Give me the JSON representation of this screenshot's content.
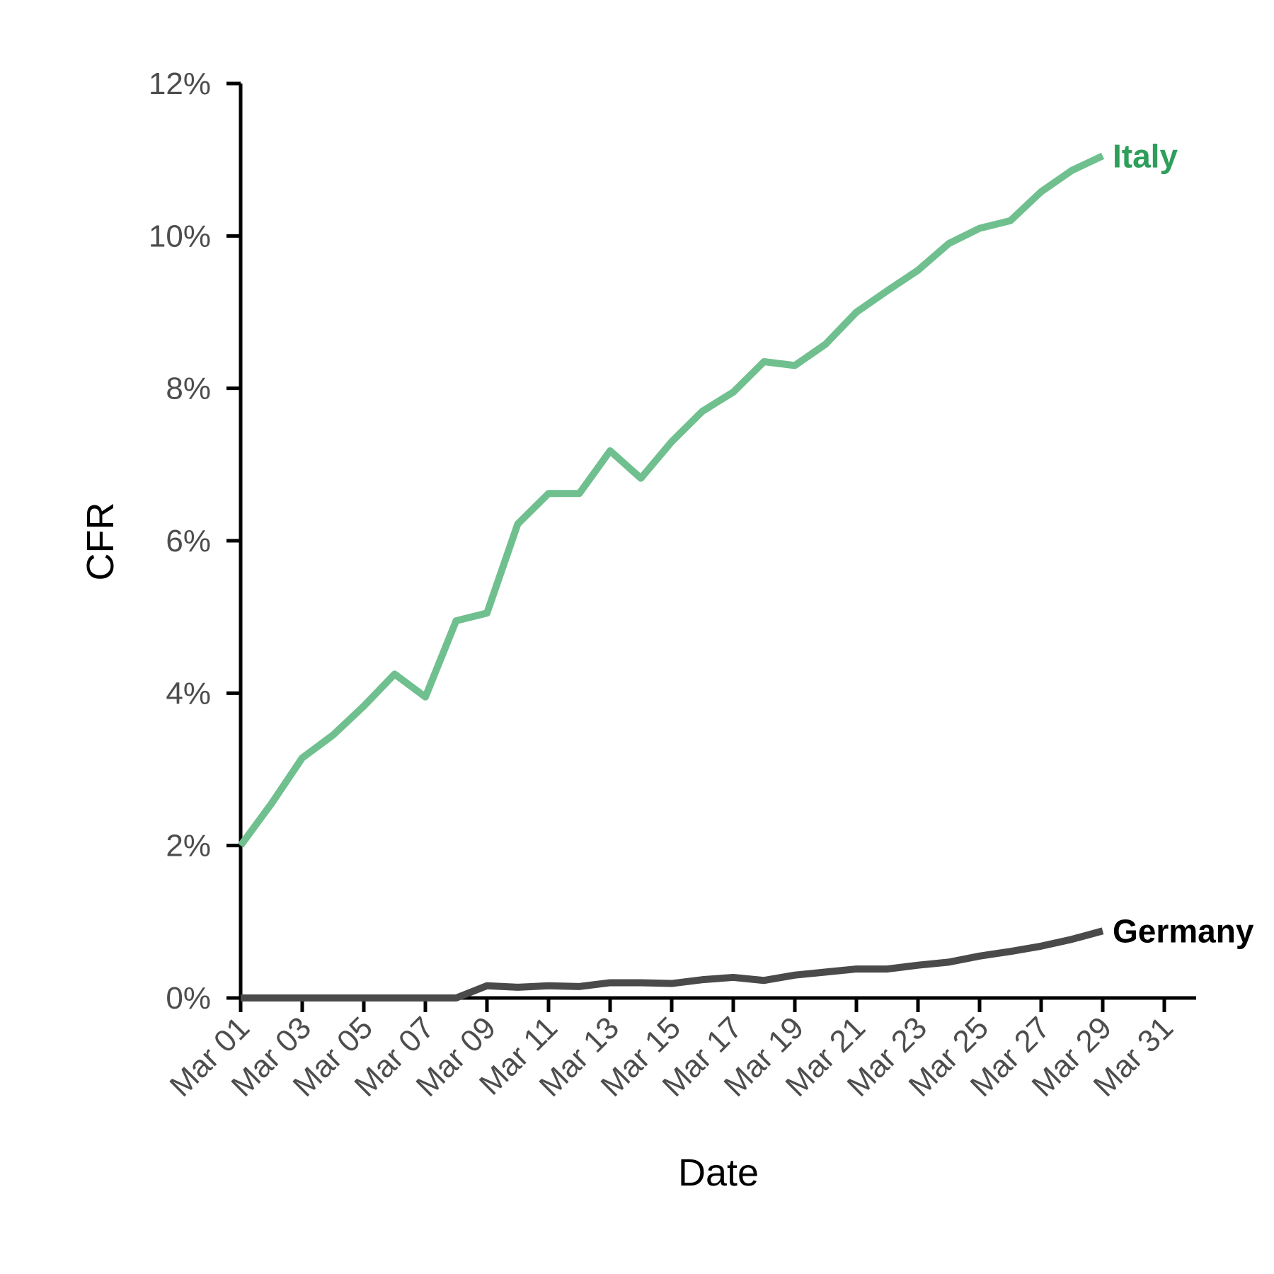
{
  "chart_data": {
    "type": "line",
    "title": "",
    "xlabel": "Date",
    "ylabel": "CFR",
    "x_tick_labels": [
      "Mar 01",
      "Mar 03",
      "Mar 05",
      "Mar 07",
      "Mar 09",
      "Mar 11",
      "Mar 13",
      "Mar 15",
      "Mar 17",
      "Mar 19",
      "Mar 21",
      "Mar 23",
      "Mar 25",
      "Mar 27",
      "Mar 29",
      "Mar 31"
    ],
    "y_tick_labels": [
      "0%",
      "2%",
      "4%",
      "6%",
      "8%",
      "10%",
      "12%"
    ],
    "y_ticks": [
      0,
      2,
      4,
      6,
      8,
      10,
      12
    ],
    "ylim": [
      0,
      12
    ],
    "xlim": [
      "Mar 01",
      "Mar 31"
    ],
    "grid": false,
    "legend": "direct labels at line ends",
    "x": [
      "Mar 01",
      "Mar 02",
      "Mar 03",
      "Mar 04",
      "Mar 05",
      "Mar 06",
      "Mar 07",
      "Mar 08",
      "Mar 09",
      "Mar 10",
      "Mar 11",
      "Mar 12",
      "Mar 13",
      "Mar 14",
      "Mar 15",
      "Mar 16",
      "Mar 17",
      "Mar 18",
      "Mar 19",
      "Mar 20",
      "Mar 21",
      "Mar 22",
      "Mar 23",
      "Mar 24",
      "Mar 25",
      "Mar 26",
      "Mar 27",
      "Mar 28",
      "Mar 29"
    ],
    "series": [
      {
        "name": "Italy",
        "color": "#6fc08e",
        "label_color": "#2e9e5b",
        "values": [
          2.0,
          2.55,
          3.15,
          3.45,
          3.83,
          4.25,
          3.95,
          4.95,
          5.05,
          6.22,
          6.62,
          6.62,
          7.18,
          6.82,
          7.3,
          7.7,
          7.95,
          8.35,
          8.3,
          8.58,
          9.0,
          9.28,
          9.55,
          9.9,
          10.1,
          10.2,
          10.58,
          10.86,
          11.05
        ]
      },
      {
        "name": "Germany",
        "color": "#4a4a4a",
        "label_color": "#000000",
        "values": [
          0.0,
          0.0,
          0.0,
          0.0,
          0.0,
          0.0,
          0.0,
          0.0,
          0.16,
          0.14,
          0.16,
          0.15,
          0.2,
          0.2,
          0.19,
          0.24,
          0.27,
          0.23,
          0.3,
          0.34,
          0.38,
          0.38,
          0.43,
          0.47,
          0.55,
          0.61,
          0.68,
          0.77,
          0.88
        ]
      }
    ]
  }
}
